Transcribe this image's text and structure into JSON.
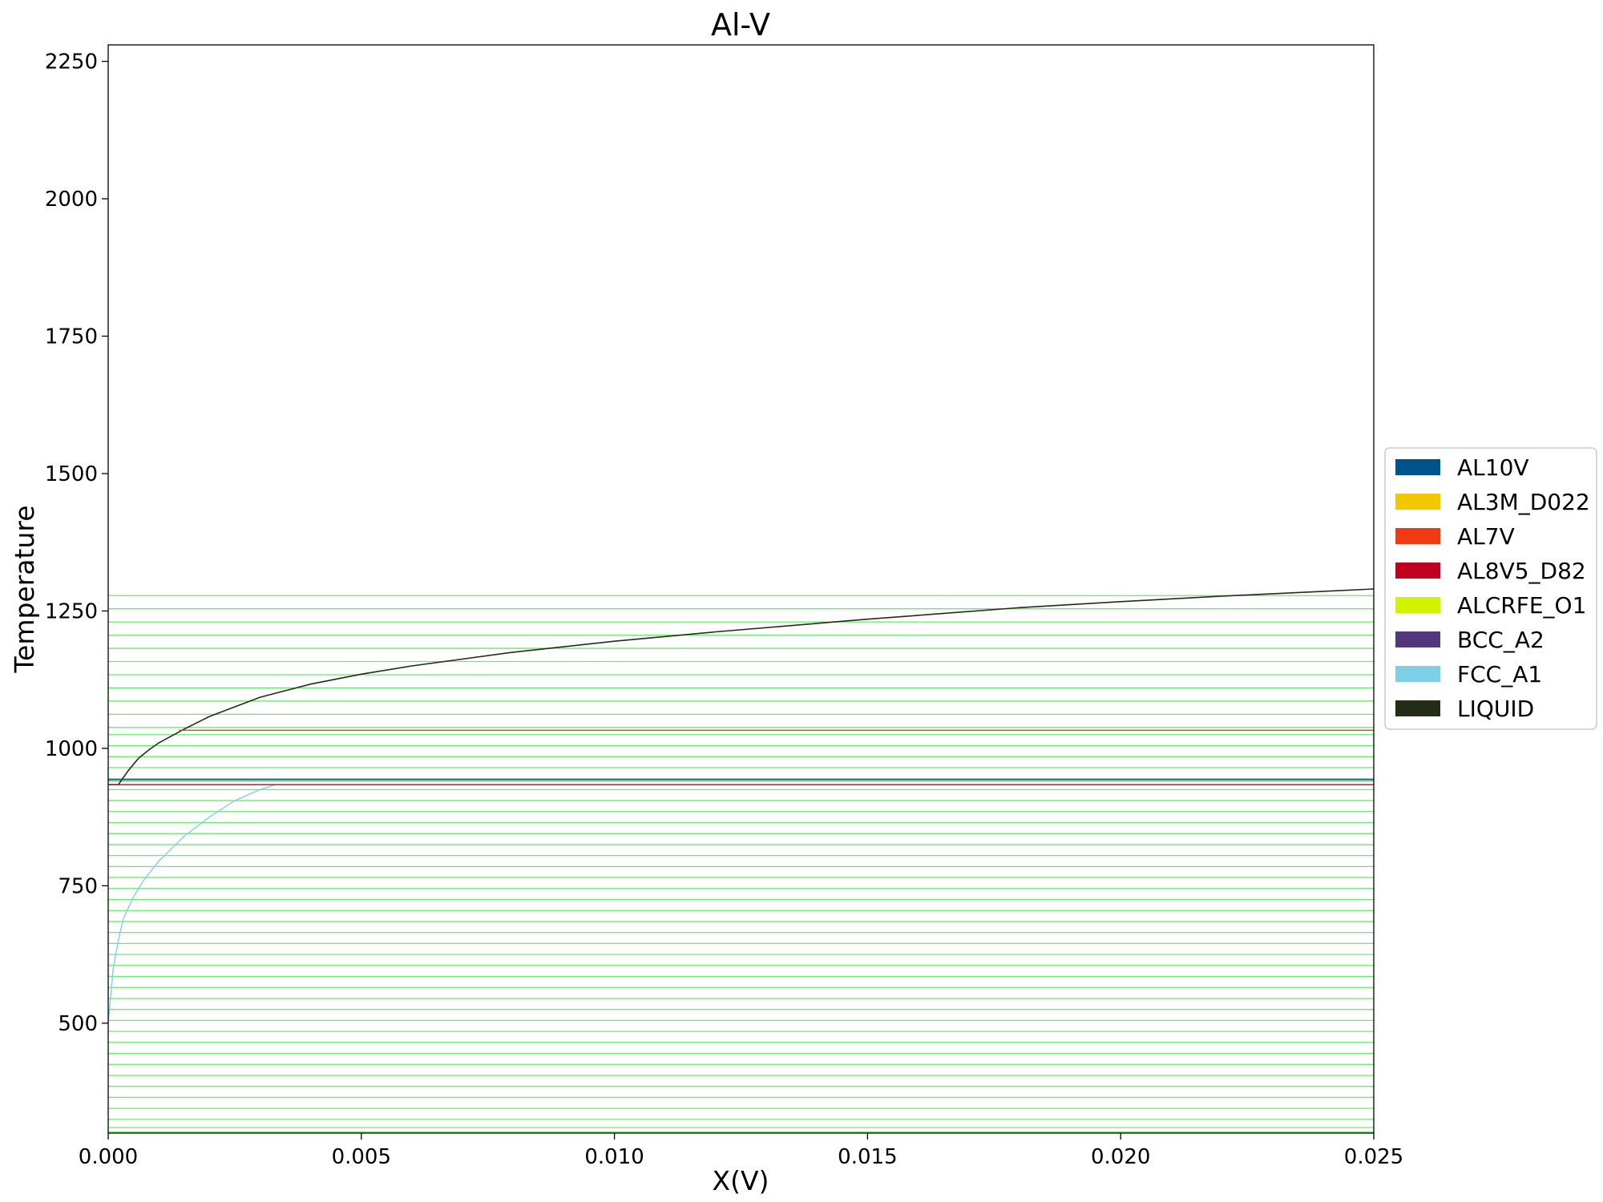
{
  "chart_data": {
    "type": "line",
    "title": "Al-V",
    "xlabel": "X(V)",
    "ylabel": "Temperature",
    "xlim": [
      0.0,
      0.025
    ],
    "ylim": [
      300,
      2280
    ],
    "xticks": [
      "0.000",
      "0.005",
      "0.010",
      "0.015",
      "0.020",
      "0.025"
    ],
    "xtick_values": [
      0.0,
      0.005,
      0.01,
      0.015,
      0.02,
      0.025
    ],
    "yticks": [
      "500",
      "750",
      "1000",
      "1250",
      "1500",
      "1750",
      "2000",
      "2250"
    ],
    "ytick_values": [
      500,
      750,
      1000,
      1250,
      1500,
      1750,
      2000,
      2250
    ],
    "grid": false,
    "legend_position": "center-right (outside plot)",
    "legend": [
      {
        "name": "AL10V",
        "color": "#00538a"
      },
      {
        "name": "AL3M_D022",
        "color": "#f4c800"
      },
      {
        "name": "AL7V",
        "color": "#f13a13"
      },
      {
        "name": "AL8V5_D82",
        "color": "#c10020"
      },
      {
        "name": "ALCRFE_O1",
        "color": "#d2f300"
      },
      {
        "name": "BCC_A2",
        "color": "#53377a"
      },
      {
        "name": "FCC_A1",
        "color": "#7ed0e6"
      },
      {
        "name": "LIQUID",
        "color": "#232c16"
      }
    ],
    "series": [
      {
        "name": "LIQUID",
        "color": "#232c16",
        "x": [
          0.0,
          0.0002,
          0.0004,
          0.0006,
          0.0008,
          0.001,
          0.0015,
          0.002,
          0.003,
          0.004,
          0.005,
          0.006,
          0.008,
          0.01,
          0.012,
          0.015,
          0.018,
          0.02,
          0.022,
          0.025
        ],
        "y": [
          934,
          934,
          960,
          982,
          997,
          1010,
          1035,
          1058,
          1093,
          1117,
          1135,
          1150,
          1175,
          1195,
          1212,
          1235,
          1256,
          1267,
          1277,
          1290
        ]
      },
      {
        "name": "FCC_A1",
        "color": "#7ed0e6",
        "x": [
          0.0,
          0.0001,
          0.0002,
          0.0003,
          0.0005,
          0.0007,
          0.001,
          0.0015,
          0.002,
          0.0025,
          0.003,
          0.0033
        ],
        "y": [
          500,
          600,
          650,
          690,
          730,
          760,
          795,
          840,
          875,
          905,
          925,
          934
        ]
      },
      {
        "name": "AL7V",
        "color": "#f13a13",
        "x": [
          0.0014,
          0.025
        ],
        "y": [
          1033,
          1033
        ]
      },
      {
        "name": "AL8V5_D82",
        "color": "#c10020",
        "x": [
          0.0,
          0.025
        ],
        "y": [
          934,
          934
        ]
      },
      {
        "name": "AL10V",
        "color": "#00538a",
        "x": [
          0.0,
          0.025
        ],
        "y": [
          943,
          943
        ]
      }
    ],
    "tie_lines": {
      "color": "#6fe86f",
      "y_values": [
        1278,
        1254,
        1230,
        1206,
        1182,
        1158,
        1134,
        1110,
        1086,
        1062,
        1038,
        1025,
        1005,
        985,
        965,
        945,
        940,
        925,
        905,
        885,
        865,
        845,
        825,
        805,
        785,
        765,
        745,
        725,
        705,
        685,
        665,
        645,
        625,
        605,
        585,
        565,
        545,
        525,
        505,
        485,
        465,
        445,
        425,
        405,
        385,
        365,
        345,
        325,
        310,
        302
      ]
    }
  }
}
